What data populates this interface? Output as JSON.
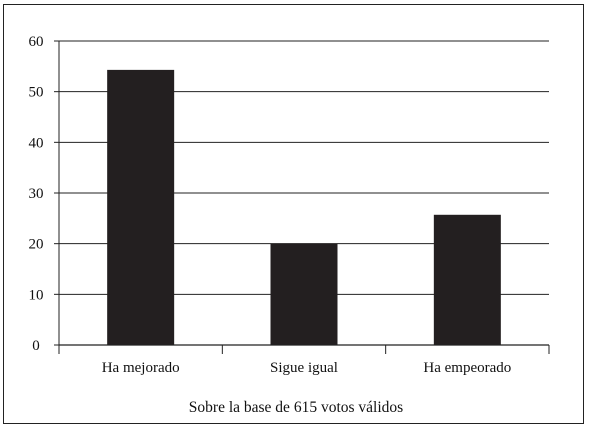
{
  "chart_data": {
    "type": "bar",
    "categories": [
      "Ha mejorado",
      "Sigue igual",
      "Ha empeorado"
    ],
    "values": [
      54.3,
      20.0,
      25.7
    ],
    "ylim": [
      0,
      60
    ],
    "yticks": [
      0,
      10,
      20,
      30,
      40,
      50,
      60
    ],
    "grid": "horizontal",
    "bar_color": "#231f20",
    "xlabel": "Sobre la base de 615 votos válidos",
    "ylabel": "",
    "title": ""
  }
}
